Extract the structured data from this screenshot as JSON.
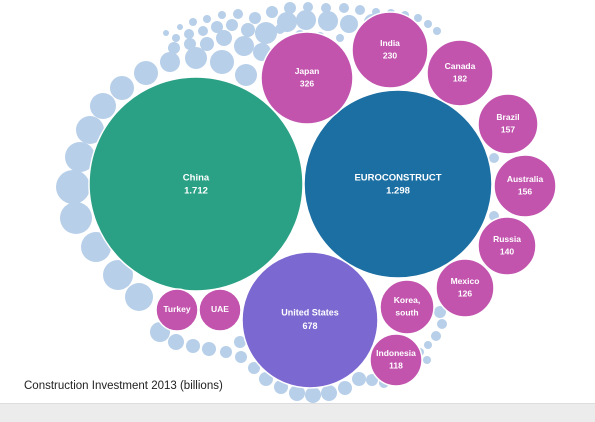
{
  "chart_data": {
    "type": "bubble",
    "title": "Construction Investment 2013 (billions)",
    "colors": {
      "china": "#2aa084",
      "euroconstruct": "#1c6fa3",
      "united_states": "#7b68d0",
      "country": "#c254ae",
      "filler": "#b7cfe9",
      "label": "#ffffff"
    },
    "items": [
      {
        "name": "China",
        "value_label": "1.712",
        "value": 1712,
        "color_key": "china"
      },
      {
        "name": "EUROCONSTRUCT",
        "value_label": "1.298",
        "value": 1298,
        "color_key": "euroconstruct"
      },
      {
        "name": "United States",
        "value_label": "678",
        "value": 678,
        "color_key": "united_states"
      },
      {
        "name": "Japan",
        "value_label": "326",
        "value": 326,
        "color_key": "country"
      },
      {
        "name": "India",
        "value_label": "230",
        "value": 230,
        "color_key": "country"
      },
      {
        "name": "Canada",
        "value_label": "182",
        "value": 182,
        "color_key": "country"
      },
      {
        "name": "Brazil",
        "value_label": "157",
        "value": 157,
        "color_key": "country"
      },
      {
        "name": "Australia",
        "value_label": "156",
        "value": 156,
        "color_key": "country"
      },
      {
        "name": "Russia",
        "value_label": "140",
        "value": 140,
        "color_key": "country"
      },
      {
        "name": "Mexico",
        "value_label": "126",
        "value": 126,
        "color_key": "country"
      },
      {
        "name": "Korea, south",
        "value_label": "",
        "value": null,
        "color_key": "country"
      },
      {
        "name": "Indonesia",
        "value_label": "118",
        "value": 118,
        "color_key": "country"
      },
      {
        "name": "Turkey",
        "value_label": "",
        "value": null,
        "color_key": "country"
      },
      {
        "name": "UAE",
        "value_label": "",
        "value": null,
        "color_key": "country"
      }
    ]
  }
}
